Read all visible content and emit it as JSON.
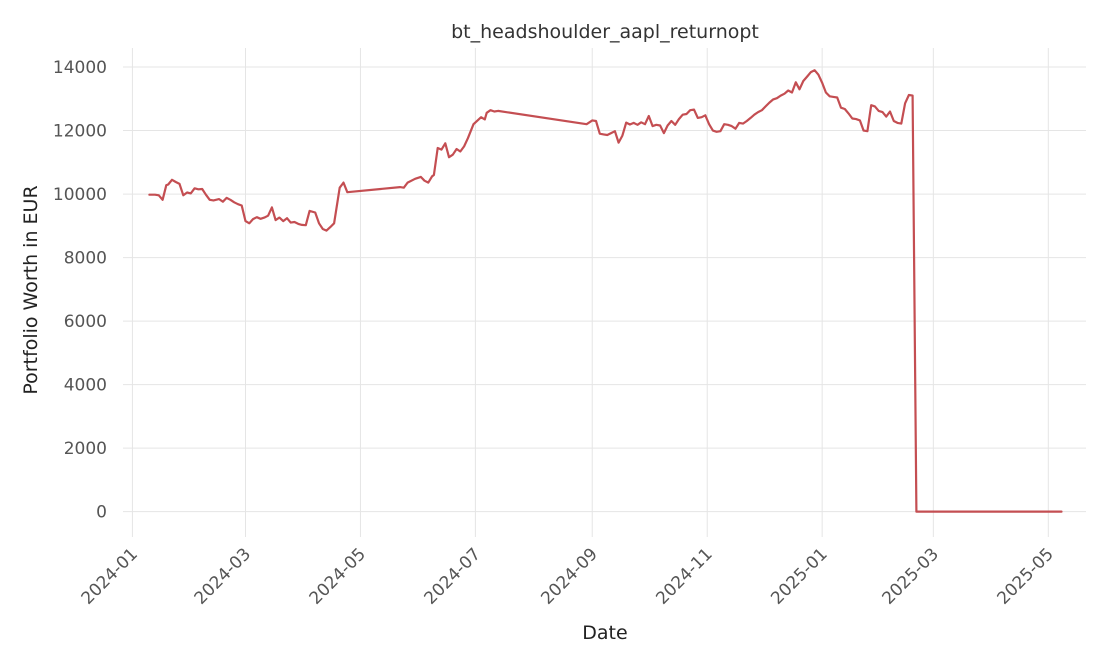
{
  "chart_data": {
    "type": "line",
    "title": "bt_headshoulder_aapl_returnopt",
    "xlabel": "Date",
    "ylabel": "Portfolio Worth in EUR",
    "xlim": [
      "2023-12-27",
      "2025-05-21"
    ],
    "ylim": [
      -800,
      14600
    ],
    "grid": true,
    "x_ticks": [
      "2024-01",
      "2024-03",
      "2024-05",
      "2024-07",
      "2024-09",
      "2024-11",
      "2025-01",
      "2025-03",
      "2025-05"
    ],
    "y_ticks": [
      0,
      2000,
      4000,
      6000,
      8000,
      10000,
      12000,
      14000
    ],
    "series": [
      {
        "color": "#c44e52",
        "x": [
          "2024-01-10",
          "2024-01-13",
          "2024-01-15",
          "2024-01-17",
          "2024-01-19",
          "2024-01-20",
          "2024-01-22",
          "2024-01-24",
          "2024-01-26",
          "2024-01-28",
          "2024-01-30",
          "2024-02-01",
          "2024-02-03",
          "2024-02-05",
          "2024-02-07",
          "2024-02-09",
          "2024-02-11",
          "2024-02-13",
          "2024-02-16",
          "2024-02-18",
          "2024-02-20",
          "2024-02-22",
          "2024-02-24",
          "2024-02-26",
          "2024-02-28",
          "2024-03-01",
          "2024-03-03",
          "2024-03-05",
          "2024-03-07",
          "2024-03-09",
          "2024-03-11",
          "2024-03-13",
          "2024-03-15",
          "2024-03-17",
          "2024-03-19",
          "2024-03-21",
          "2024-03-23",
          "2024-03-25",
          "2024-03-27",
          "2024-03-29",
          "2024-03-31",
          "2024-04-02",
          "2024-04-04",
          "2024-04-07",
          "2024-04-09",
          "2024-04-11",
          "2024-04-13",
          "2024-04-15",
          "2024-04-17",
          "2024-04-20",
          "2024-04-22",
          "2024-04-24",
          "2024-05-22",
          "2024-05-24",
          "2024-05-26",
          "2024-05-30",
          "2024-06-02",
          "2024-06-04",
          "2024-06-06",
          "2024-06-08",
          "2024-06-09",
          "2024-06-11",
          "2024-06-13",
          "2024-06-15",
          "2024-06-17",
          "2024-06-19",
          "2024-06-21",
          "2024-06-23",
          "2024-06-25",
          "2024-06-27",
          "2024-06-30",
          "2024-07-04",
          "2024-07-06",
          "2024-07-07",
          "2024-07-09",
          "2024-07-11",
          "2024-07-13",
          "2024-08-29",
          "2024-09-01",
          "2024-09-03",
          "2024-09-05",
          "2024-09-07",
          "2024-09-09",
          "2024-09-11",
          "2024-09-13",
          "2024-09-15",
          "2024-09-17",
          "2024-09-19",
          "2024-09-21",
          "2024-09-23",
          "2024-09-25",
          "2024-09-27",
          "2024-09-29",
          "2024-10-01",
          "2024-10-03",
          "2024-10-05",
          "2024-10-07",
          "2024-10-09",
          "2024-10-11",
          "2024-10-13",
          "2024-10-15",
          "2024-10-17",
          "2024-10-19",
          "2024-10-21",
          "2024-10-23",
          "2024-10-25",
          "2024-10-27",
          "2024-10-29",
          "2024-10-31",
          "2024-11-02",
          "2024-11-04",
          "2024-11-06",
          "2024-11-08",
          "2024-11-10",
          "2024-11-12",
          "2024-11-14",
          "2024-11-16",
          "2024-11-18",
          "2024-11-20",
          "2024-11-22",
          "2024-11-24",
          "2024-11-26",
          "2024-11-28",
          "2024-11-30",
          "2024-12-02",
          "2024-12-04",
          "2024-12-06",
          "2024-12-08",
          "2024-12-10",
          "2024-12-12",
          "2024-12-14",
          "2024-12-16",
          "2024-12-18",
          "2024-12-20",
          "2024-12-22",
          "2024-12-24",
          "2024-12-26",
          "2024-12-28",
          "2024-12-30",
          "2025-01-01",
          "2025-01-03",
          "2025-01-05",
          "2025-01-07",
          "2025-01-09",
          "2025-01-11",
          "2025-01-13",
          "2025-01-15",
          "2025-01-17",
          "2025-01-19",
          "2025-01-21",
          "2025-01-23",
          "2025-01-25",
          "2025-01-27",
          "2025-01-29",
          "2025-01-31",
          "2025-02-02",
          "2025-02-04",
          "2025-02-06",
          "2025-02-08",
          "2025-02-10",
          "2025-02-12",
          "2025-02-14",
          "2025-02-16",
          "2025-02-18",
          "2025-02-20",
          "2025-05-08"
        ],
        "y": [
          9980,
          9980,
          9960,
          9820,
          10280,
          10300,
          10450,
          10380,
          10320,
          9960,
          10050,
          10020,
          10180,
          10150,
          10160,
          9980,
          9820,
          9800,
          9840,
          9760,
          9880,
          9820,
          9740,
          9680,
          9640,
          9150,
          9080,
          9210,
          9270,
          9220,
          9260,
          9320,
          9580,
          9180,
          9260,
          9150,
          9240,
          9100,
          9120,
          9060,
          9030,
          9020,
          9470,
          9420,
          9080,
          8900,
          8850,
          8960,
          9080,
          10200,
          10360,
          10060,
          10220,
          10200,
          10360,
          10480,
          10540,
          10420,
          10360,
          10560,
          10600,
          11450,
          11400,
          11600,
          11160,
          11240,
          11420,
          11340,
          11500,
          11760,
          12200,
          12420,
          12350,
          12560,
          12640,
          12600,
          12620,
          12200,
          12320,
          12300,
          11900,
          11880,
          11860,
          11920,
          11980,
          11620,
          11840,
          12250,
          12190,
          12240,
          12180,
          12260,
          12200,
          12460,
          12140,
          12180,
          12160,
          11920,
          12160,
          12300,
          12180,
          12360,
          12500,
          12520,
          12640,
          12660,
          12400,
          12420,
          12480,
          12200,
          12000,
          11960,
          11980,
          12200,
          12180,
          12140,
          12060,
          12240,
          12220,
          12300,
          12400,
          12500,
          12580,
          12640,
          12760,
          12880,
          12980,
          13020,
          13100,
          13160,
          13260,
          13200,
          13520,
          13300,
          13560,
          13700,
          13840,
          13900,
          13760,
          13500,
          13200,
          13080,
          13060,
          13040,
          12720,
          12680,
          12540,
          12380,
          12360,
          12320,
          12000,
          11980,
          12800,
          12760,
          12620,
          12580,
          12440,
          12600,
          12300,
          12240,
          12220,
          12860,
          13120,
          13100,
          0,
          0
        ]
      }
    ]
  }
}
